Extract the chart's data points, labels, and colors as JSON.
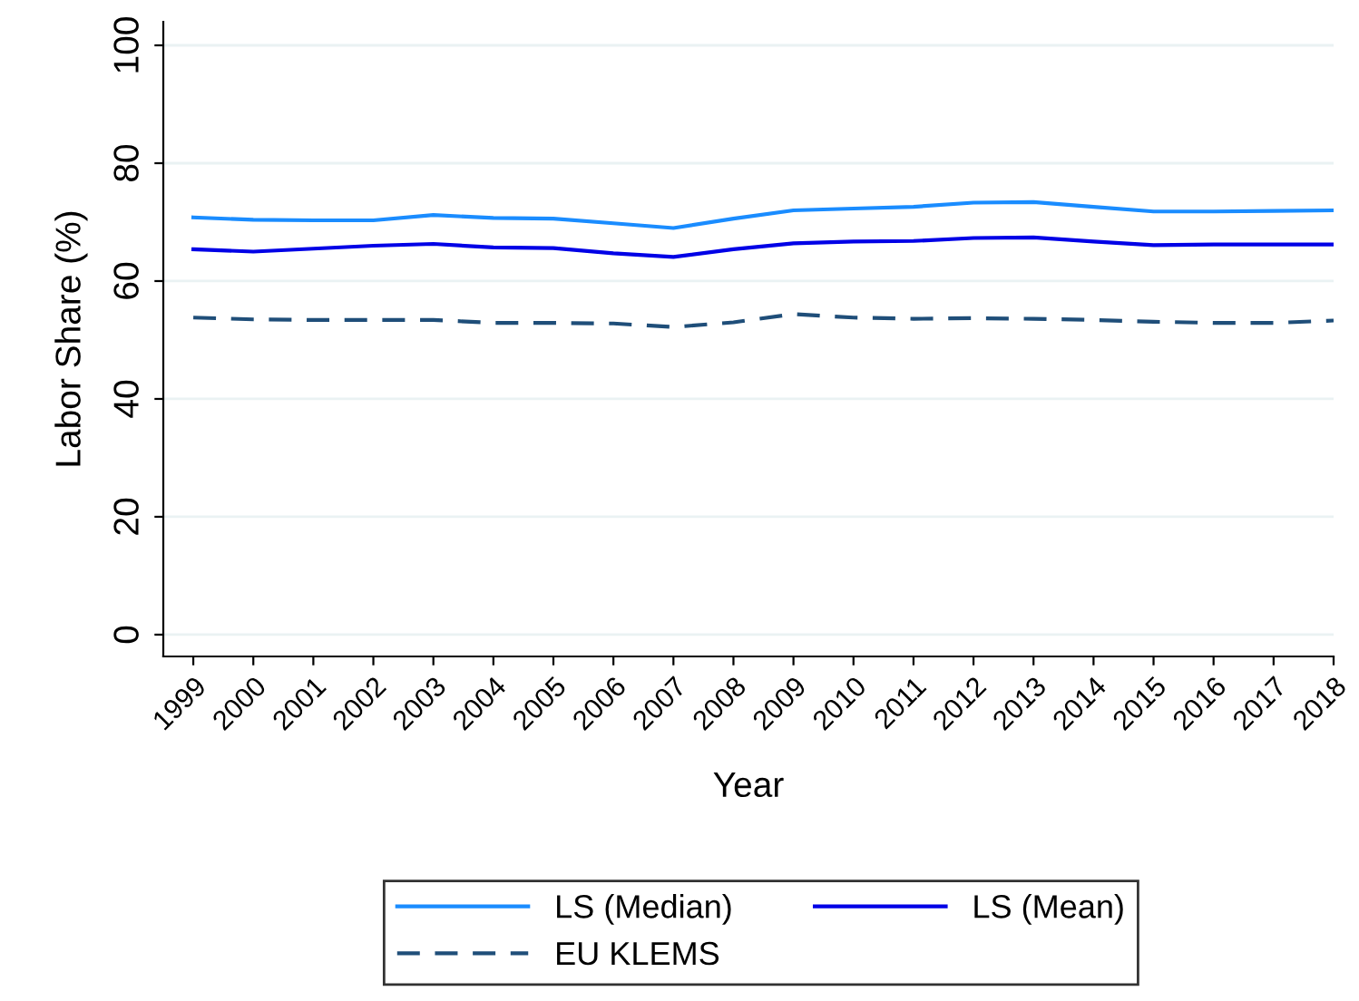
{
  "chart_data": {
    "type": "line",
    "xlabel": "Year",
    "ylabel": "Labor Share (%)",
    "x": [
      1999,
      2000,
      2001,
      2002,
      2003,
      2004,
      2005,
      2006,
      2007,
      2008,
      2009,
      2010,
      2011,
      2012,
      2013,
      2014,
      2015,
      2016,
      2017,
      2018
    ],
    "series": [
      {
        "name": "LS (Median)",
        "color": "#1a8cff",
        "line_style": "solid",
        "values": [
          70.8,
          70.4,
          70.3,
          70.3,
          71.2,
          70.7,
          70.6,
          69.8,
          69.0,
          70.6,
          72.0,
          72.3,
          72.6,
          73.3,
          73.4,
          72.6,
          71.8,
          71.8,
          71.9,
          72.0
        ]
      },
      {
        "name": "LS (Mean)",
        "color": "#0000e6",
        "line_style": "solid",
        "values": [
          65.4,
          65.0,
          65.5,
          66.0,
          66.3,
          65.7,
          65.6,
          64.7,
          64.1,
          65.4,
          66.4,
          66.7,
          66.8,
          67.3,
          67.4,
          66.7,
          66.1,
          66.2,
          66.2,
          66.2
        ]
      },
      {
        "name": "EU KLEMS",
        "color": "#1f4e79",
        "line_style": "dashed",
        "values": [
          53.8,
          53.5,
          53.4,
          53.4,
          53.4,
          52.9,
          52.9,
          52.8,
          52.2,
          53.0,
          54.4,
          53.8,
          53.6,
          53.7,
          53.6,
          53.4,
          53.1,
          52.9,
          52.9,
          53.3
        ]
      }
    ],
    "xlim": [
      1998.5,
      2018
    ],
    "ylim": [
      -3.7,
      104
    ],
    "xticks": [
      1999,
      2000,
      2001,
      2002,
      2003,
      2004,
      2005,
      2006,
      2007,
      2008,
      2009,
      2010,
      2011,
      2012,
      2013,
      2014,
      2015,
      2016,
      2017,
      2018
    ],
    "yticks": [
      0,
      20,
      40,
      60,
      80,
      100
    ],
    "grid": "y",
    "legend": "bottom",
    "marker": "none"
  }
}
